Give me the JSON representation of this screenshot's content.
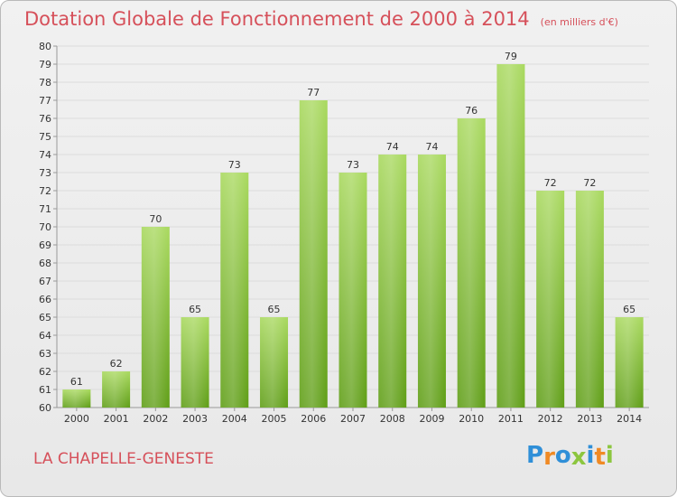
{
  "title": "Dotation Globale de Fonctionnement de 2000 à 2014",
  "subtitle": "(en milliers d'€)",
  "footer_label": "LA CHAPELLE-GENESTE",
  "logo": {
    "letters": [
      "P",
      "r",
      "o",
      "x",
      "i",
      "t",
      "i"
    ],
    "colors": [
      "#2f8fd8",
      "#f08a24",
      "#2f8fd8",
      "#8cc63f",
      "#2f8fd8",
      "#f08a24",
      "#8cc63f"
    ]
  },
  "colors": {
    "bar_top": "#a9d95f",
    "bar_bottom": "#5f9e16",
    "grid": "#dcdcdc",
    "accent": "#d6505a"
  },
  "chart_data": {
    "type": "bar",
    "categories": [
      "2000",
      "2001",
      "2002",
      "2003",
      "2004",
      "2005",
      "2006",
      "2007",
      "2008",
      "2009",
      "2010",
      "2011",
      "2012",
      "2013",
      "2014"
    ],
    "values": [
      61,
      62,
      70,
      65,
      73,
      65,
      77,
      73,
      74,
      74,
      76,
      79,
      72,
      72,
      65
    ],
    "ylim": [
      60,
      80
    ],
    "yticks": [
      60,
      61,
      62,
      63,
      64,
      65,
      66,
      67,
      68,
      69,
      70,
      71,
      72,
      73,
      74,
      75,
      76,
      77,
      78,
      79,
      80
    ],
    "grid": true,
    "legend": "none"
  }
}
